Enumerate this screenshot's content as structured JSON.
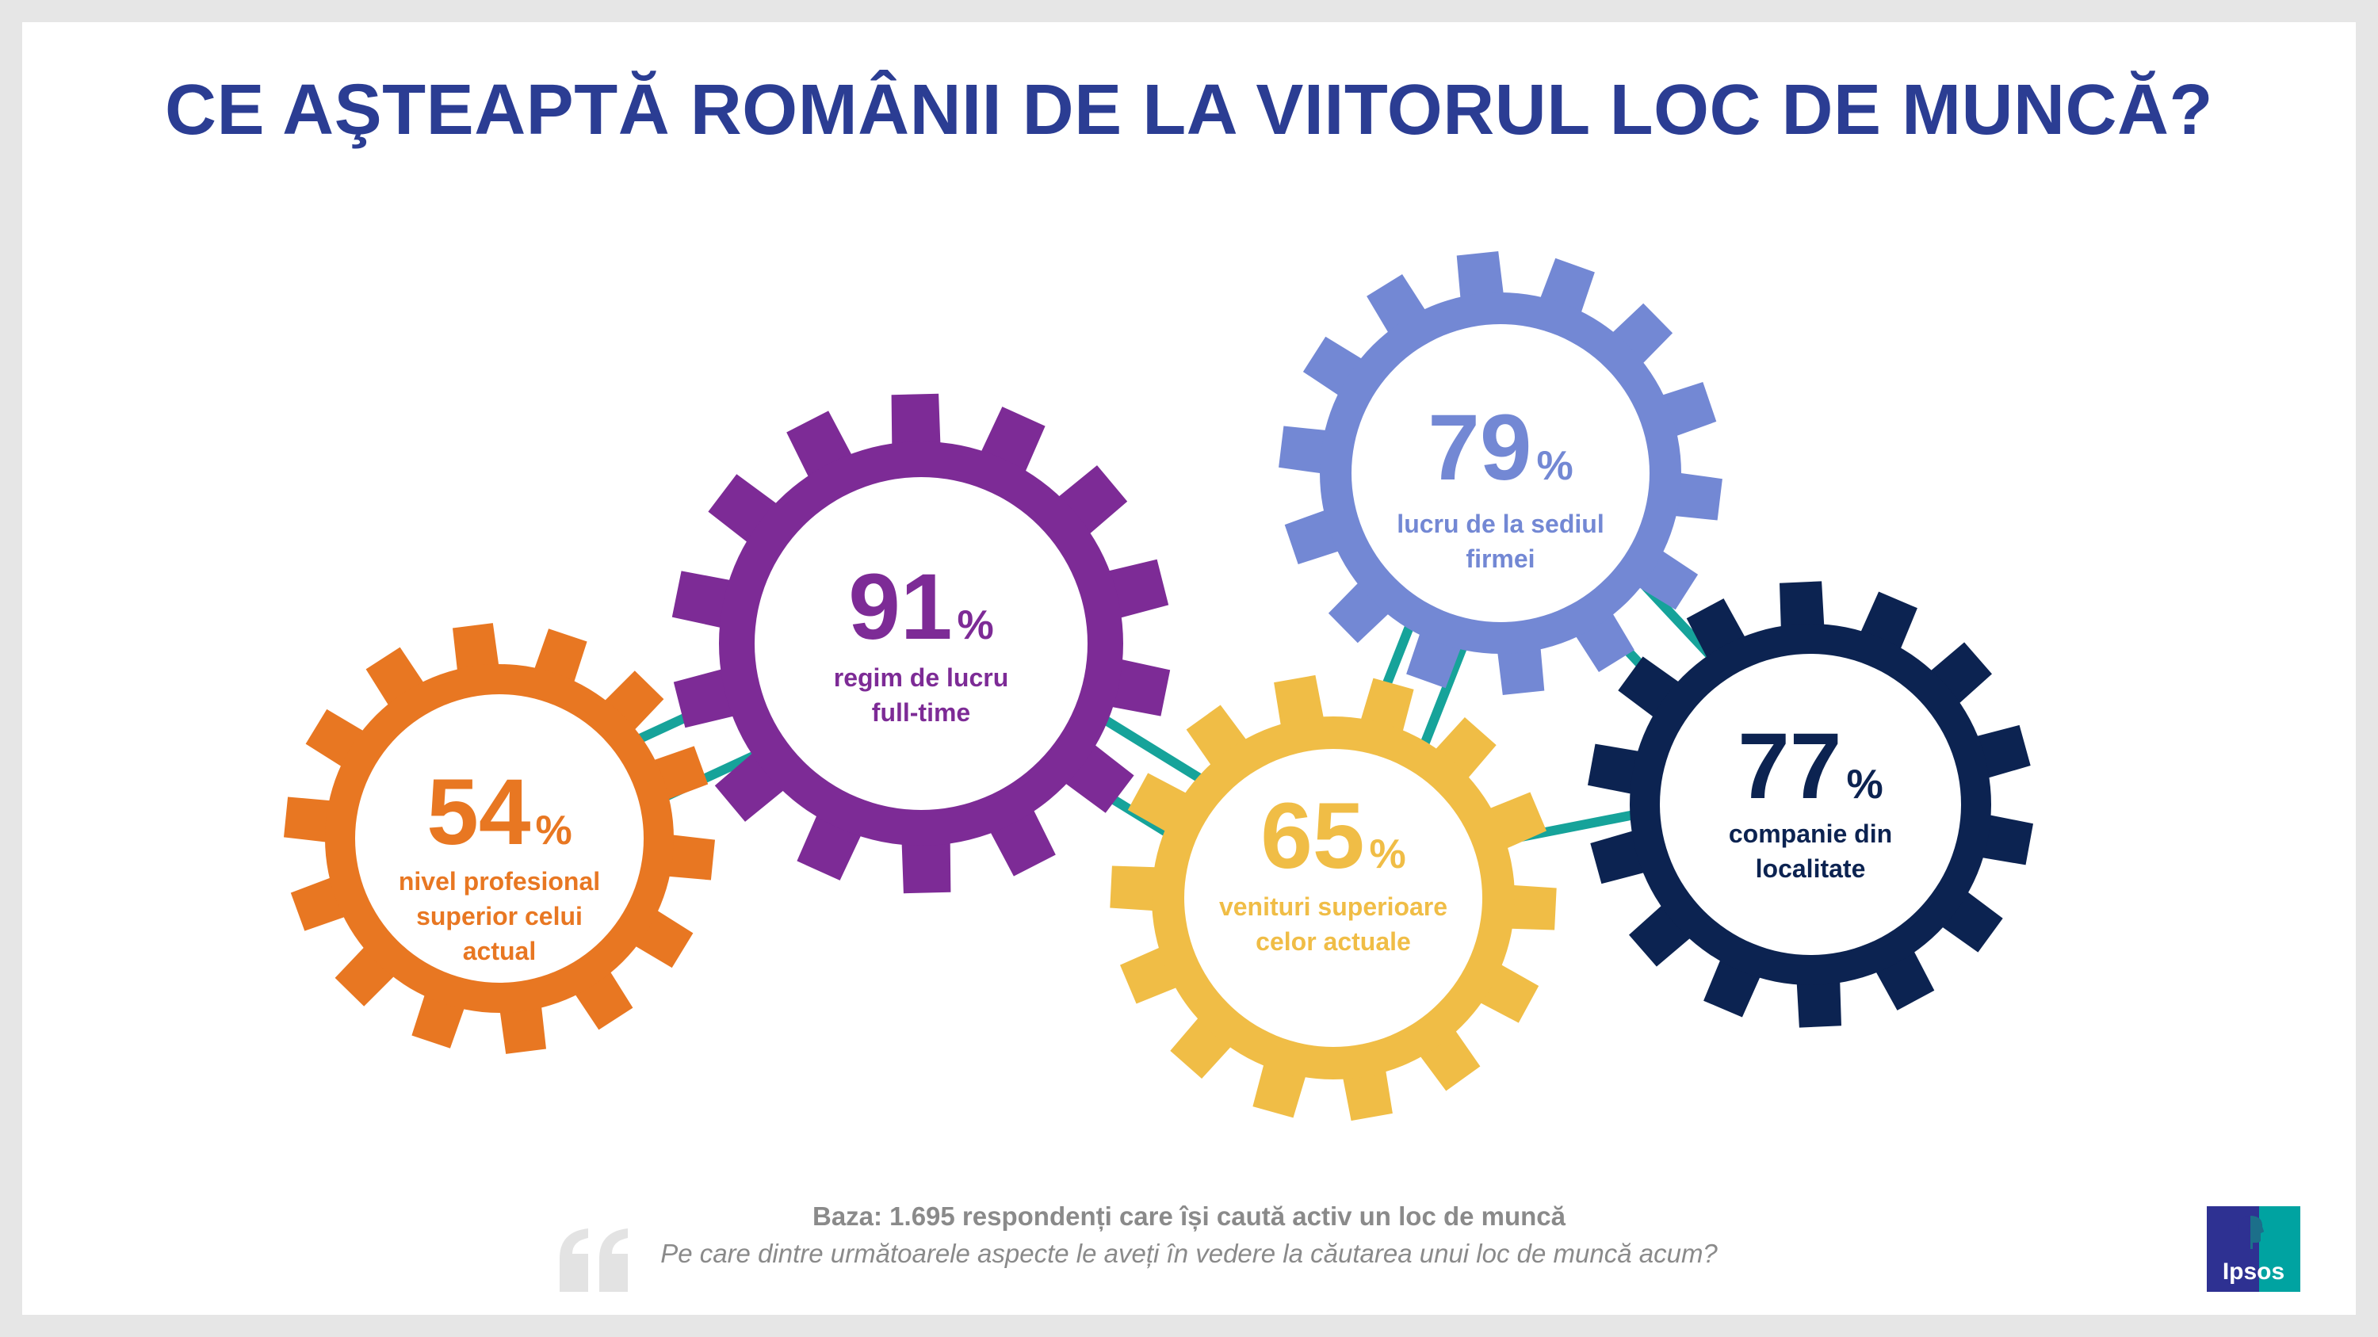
{
  "title": "CE AŞTEAPTĂ ROMÂNII DE LA VIITORUL LOC DE MUNCĂ?",
  "gears": [
    {
      "id": "nivel",
      "value": "54",
      "unit": "%",
      "label_lines": [
        "nivel profesional",
        "superior celui",
        "actual"
      ],
      "color": "#e87722"
    },
    {
      "id": "regim",
      "value": "91",
      "unit": "%",
      "label_lines": [
        "regim de lucru",
        "full-time"
      ],
      "color": "#7d2b96"
    },
    {
      "id": "venituri",
      "value": "65",
      "unit": "%",
      "label_lines": [
        "venituri superioare",
        "celor actuale"
      ],
      "color": "#f0bd46"
    },
    {
      "id": "sediu",
      "value": "79",
      "unit": "%",
      "label_lines": [
        "lucru de la sediul",
        "firmei"
      ],
      "color": "#7388d4"
    },
    {
      "id": "localitate",
      "value": "77",
      "unit": "%",
      "label_lines": [
        "companie din",
        "localitate"
      ],
      "color": "#0c2351"
    }
  ],
  "connector_color": "#16a39a",
  "footer": {
    "base": "Baza: 1.695 respondenți care își caută activ un loc de muncă",
    "question": "Pe care dintre următoarele aspecte le aveți în vedere la căutarea unui loc de muncă acum?"
  },
  "logo": {
    "text": "Ipsos",
    "bg_color": "#2e3192",
    "accent_color": "#00a3a1"
  }
}
